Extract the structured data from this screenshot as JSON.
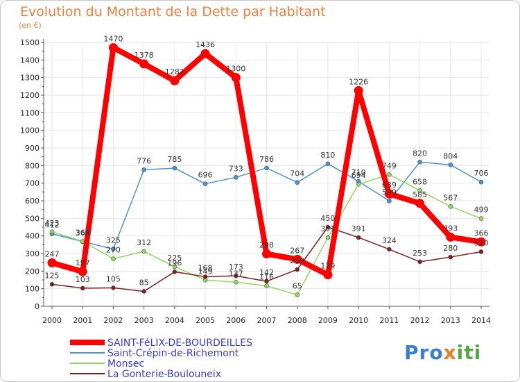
{
  "chart_data": {
    "type": "line",
    "title": "Evolution du Montant de la Dette par Habitant",
    "subtitle": "(en €)",
    "xlabel": "",
    "ylabel": "",
    "x": [
      "2000",
      "2001",
      "2002",
      "2003",
      "2004",
      "2005",
      "2006",
      "2007",
      "2008",
      "2009",
      "2010",
      "2011",
      "2012",
      "2013",
      "2014"
    ],
    "ylim": [
      0,
      1500
    ],
    "yticks": [
      0,
      100,
      200,
      300,
      400,
      500,
      600,
      700,
      800,
      900,
      1000,
      1100,
      1200,
      1300,
      1400,
      1500
    ],
    "grid": true,
    "legend_position": "bottom-left",
    "series": [
      {
        "name": "SAINT-FéLIX-DE-BOURDEILLES",
        "color": "#ff0000",
        "values": [
          247,
          197,
          1470,
          1378,
          1282,
          1436,
          1300,
          298,
          267,
          179,
          1226,
          639,
          585,
          393,
          366
        ],
        "labels": [
          "247",
          "197",
          "1470",
          "1378",
          "1282",
          "1436",
          "1300",
          "298",
          "267",
          "179",
          "1226",
          "639",
          "585",
          "393",
          "366"
        ]
      },
      {
        "name": "Saint-Crépin-de-Richemont",
        "color": "#4b92cf",
        "values": [
          412,
          368,
          325,
          776,
          785,
          696,
          733,
          786,
          704,
          810,
          710,
          599,
          820,
          804,
          706
        ],
        "labels": [
          "412",
          "368",
          "325",
          "776",
          "785",
          "696",
          "733",
          "786",
          "704",
          "810",
          "710",
          "599",
          "820",
          "804",
          "706"
        ]
      },
      {
        "name": "Monsec",
        "color": "#90d760",
        "values": [
          423,
          369,
          270,
          312,
          225,
          149,
          137,
          116,
          65,
          391,
          694,
          749,
          658,
          567,
          499
        ],
        "labels": [
          "423",
          "369",
          "270",
          "312",
          "225",
          "149",
          "137",
          "116",
          "65",
          "391",
          "694",
          "749",
          "658",
          "567",
          "499"
        ]
      },
      {
        "name": "La Gonterie-Boulouneix",
        "color": "#7a2020",
        "values": [
          125,
          103,
          105,
          85,
          196,
          168,
          173,
          142,
          209,
          450,
          391,
          324,
          253,
          280,
          310
        ],
        "labels": [
          "125",
          "103",
          "105",
          "85",
          "196",
          "168",
          "173",
          "142",
          "209",
          "450",
          "391",
          "324",
          "253",
          "280",
          "310"
        ]
      }
    ]
  },
  "logo": {
    "part1": "Pro",
    "part2": "x",
    "part3": "iti"
  }
}
